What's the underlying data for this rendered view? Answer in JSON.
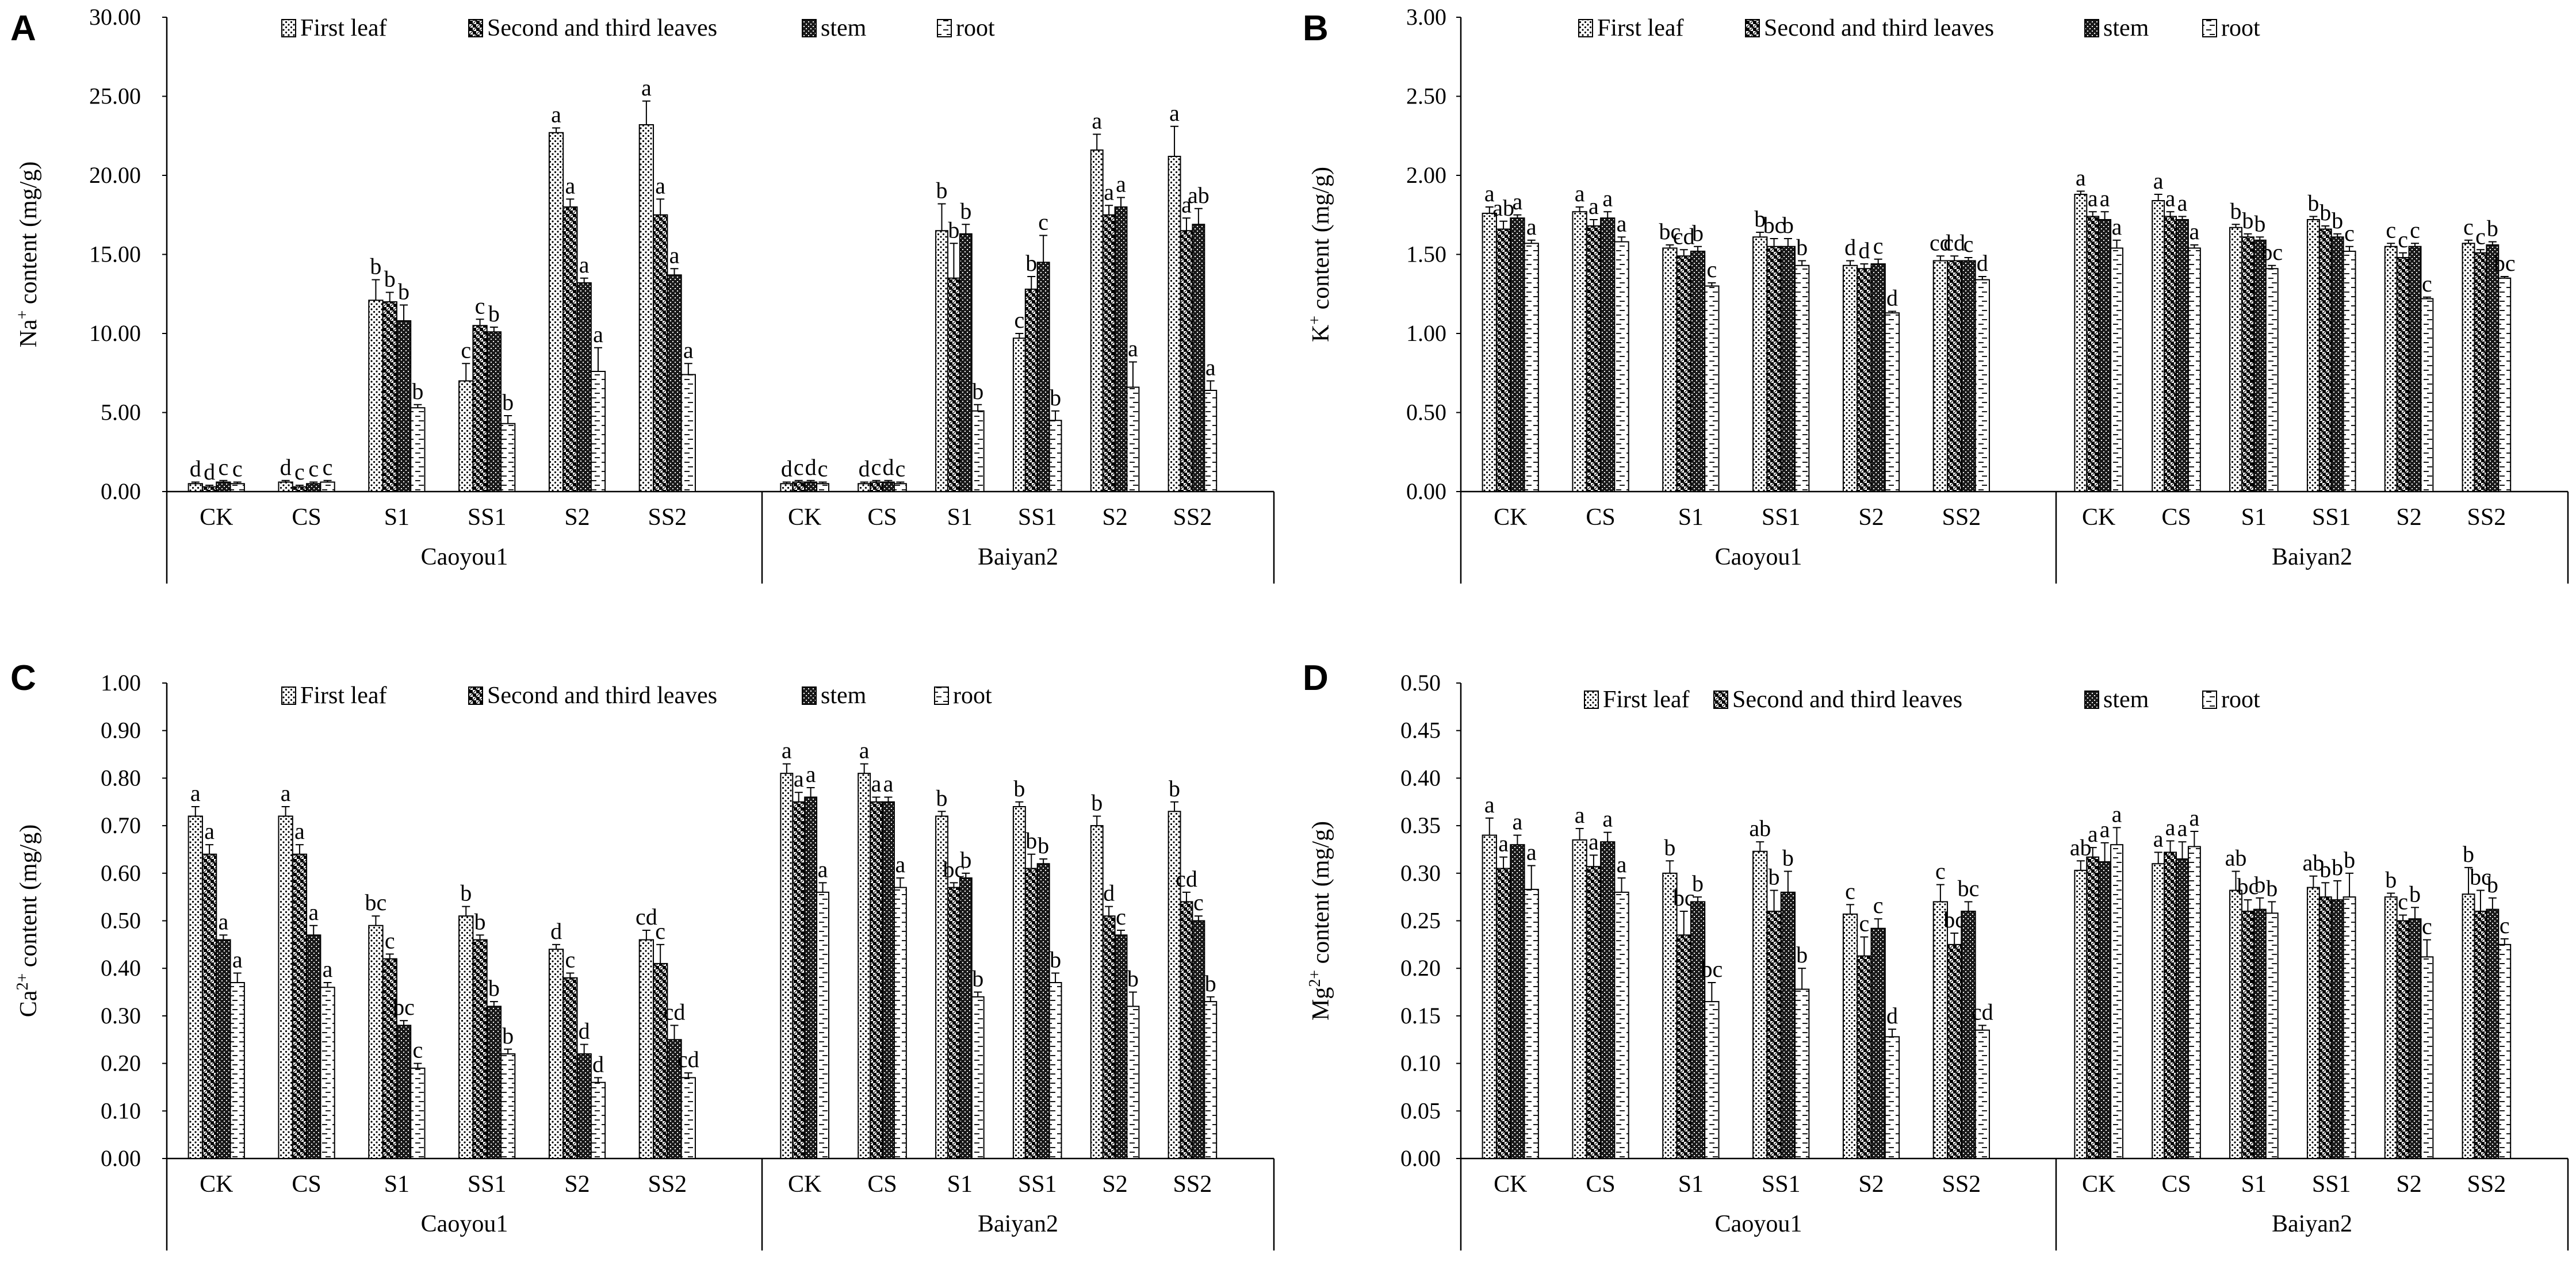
{
  "legend": [
    "First leaf",
    "Second and third leaves",
    "stem",
    "root"
  ],
  "chart_data": [
    {
      "panel": "A",
      "type": "bar",
      "ylabel_main": "Na",
      "ylabel_sup": "+",
      "ylabel_rest": " content (mg/g)",
      "ylim": [
        0,
        30
      ],
      "ystep": 5,
      "ydecimals": 2,
      "groups": [
        "Caoyou1",
        "Baiyan2"
      ],
      "categories": [
        "CK",
        "CS",
        "S1",
        "SS1",
        "S2",
        "SS2"
      ],
      "series_names": [
        "First leaf",
        "Second and third leaves",
        "stem",
        "root"
      ],
      "values": {
        "Caoyou1": [
          [
            0.5,
            0.3,
            0.6,
            0.5
          ],
          [
            0.6,
            0.3,
            0.5,
            0.6
          ],
          [
            12.1,
            12.0,
            10.8,
            5.3
          ],
          [
            7.0,
            10.5,
            10.1,
            4.3
          ],
          [
            22.7,
            18.0,
            13.2,
            7.6
          ],
          [
            23.2,
            17.5,
            13.7,
            7.4
          ]
        ],
        "Baiyan2": [
          [
            0.5,
            0.6,
            0.6,
            0.5
          ],
          [
            0.5,
            0.6,
            0.6,
            0.5
          ],
          [
            16.5,
            13.5,
            16.3,
            5.1
          ],
          [
            9.7,
            12.8,
            14.5,
            4.5
          ],
          [
            21.6,
            17.5,
            18.0,
            6.6
          ],
          [
            21.2,
            16.5,
            16.9,
            6.4
          ]
        ]
      },
      "errors": {
        "Caoyou1": [
          [
            0.1,
            0.1,
            0.1,
            0.1
          ],
          [
            0.1,
            0.1,
            0.1,
            0.1
          ],
          [
            1.3,
            0.6,
            1.0,
            0.2
          ],
          [
            1.1,
            0.4,
            0.3,
            0.5
          ],
          [
            0.3,
            0.5,
            0.3,
            1.5
          ],
          [
            1.5,
            1.0,
            0.4,
            0.7
          ]
        ],
        "Baiyan2": [
          [
            0.1,
            0.1,
            0.1,
            0.1
          ],
          [
            0.1,
            0.1,
            0.1,
            0.1
          ],
          [
            1.7,
            2.2,
            0.6,
            0.4
          ],
          [
            0.3,
            0.8,
            1.7,
            0.6
          ],
          [
            1.0,
            0.6,
            0.6,
            1.6
          ],
          [
            1.9,
            0.8,
            1.0,
            0.6
          ]
        ]
      },
      "labels": {
        "Caoyou1": [
          [
            "d",
            "d",
            "c",
            "c"
          ],
          [
            "d",
            "c",
            "c",
            "c"
          ],
          [
            "b",
            "b",
            "b",
            "b"
          ],
          [
            "c",
            "c",
            "b",
            "b"
          ],
          [
            "a",
            "a",
            "a",
            "a"
          ],
          [
            "a",
            "a",
            "a",
            "a"
          ]
        ],
        "Baiyan2": [
          [
            "d",
            "c",
            "d",
            "c"
          ],
          [
            "d",
            "c",
            "d",
            "c"
          ],
          [
            "b",
            "b",
            "b",
            "b"
          ],
          [
            "c",
            "b",
            "c",
            "b"
          ],
          [
            "a",
            "a",
            "a",
            "a"
          ],
          [
            "a",
            "a",
            "ab",
            "a"
          ]
        ]
      }
    },
    {
      "panel": "B",
      "type": "bar",
      "ylabel_main": "K",
      "ylabel_sup": "+",
      "ylabel_rest": " content (mg/g)",
      "ylim": [
        0,
        3
      ],
      "ystep": 0.5,
      "ydecimals": 2,
      "groups": [
        "Caoyou1",
        "Baiyan2"
      ],
      "categories": [
        "CK",
        "CS",
        "S1",
        "SS1",
        "S2",
        "SS2"
      ],
      "series_names": [
        "First leaf",
        "Second and third leaves",
        "stem",
        "root"
      ],
      "values": {
        "Caoyou1": [
          [
            1.76,
            1.66,
            1.73,
            1.57
          ],
          [
            1.77,
            1.68,
            1.73,
            1.58
          ],
          [
            1.54,
            1.49,
            1.52,
            1.3
          ],
          [
            1.61,
            1.55,
            1.55,
            1.43
          ],
          [
            1.43,
            1.41,
            1.44,
            1.13
          ],
          [
            1.46,
            1.46,
            1.46,
            1.34
          ]
        ],
        "Baiyan2": [
          [
            1.88,
            1.74,
            1.72,
            1.54
          ],
          [
            1.84,
            1.74,
            1.72,
            1.54
          ],
          [
            1.67,
            1.61,
            1.59,
            1.41
          ],
          [
            1.72,
            1.66,
            1.61,
            1.52
          ],
          [
            1.55,
            1.48,
            1.55,
            1.22
          ],
          [
            1.57,
            1.51,
            1.56,
            1.35
          ]
        ]
      },
      "errors": {
        "Caoyou1": [
          [
            0.04,
            0.05,
            0.02,
            0.02
          ],
          [
            0.03,
            0.04,
            0.04,
            0.03
          ],
          [
            0.02,
            0.04,
            0.03,
            0.02
          ],
          [
            0.03,
            0.05,
            0.05,
            0.03
          ],
          [
            0.03,
            0.03,
            0.03,
            0.01
          ],
          [
            0.03,
            0.03,
            0.02,
            0.02
          ]
        ],
        "Baiyan2": [
          [
            0.02,
            0.03,
            0.05,
            0.05
          ],
          [
            0.04,
            0.03,
            0.02,
            0.02
          ],
          [
            0.02,
            0.02,
            0.02,
            0.02
          ],
          [
            0.02,
            0.02,
            0.02,
            0.03
          ],
          [
            0.02,
            0.03,
            0.02,
            0.01
          ],
          [
            0.02,
            0.02,
            0.02,
            0.01
          ]
        ]
      },
      "labels": {
        "Caoyou1": [
          [
            "a",
            "ab",
            "a",
            "a"
          ],
          [
            "a",
            "a",
            "a",
            "a"
          ],
          [
            "bc",
            "cd",
            "b",
            "c"
          ],
          [
            "b",
            "bc",
            "b",
            "b"
          ],
          [
            "d",
            "d",
            "c",
            "d"
          ],
          [
            "cd",
            "cd",
            "c",
            "d"
          ]
        ],
        "Baiyan2": [
          [
            "a",
            "a",
            "a",
            "a"
          ],
          [
            "a",
            "a",
            "a",
            "a"
          ],
          [
            "b",
            "b",
            "b",
            "bc"
          ],
          [
            "b",
            "b",
            "b",
            "c"
          ],
          [
            "c",
            "c",
            "c",
            "c"
          ],
          [
            "c",
            "c",
            "b",
            "bc"
          ]
        ]
      }
    },
    {
      "panel": "C",
      "type": "bar",
      "ylabel_main": "Ca",
      "ylabel_sup": "2+",
      "ylabel_rest": " content (mg/g)",
      "ylim": [
        0,
        1
      ],
      "ystep": 0.1,
      "ydecimals": 2,
      "groups": [
        "Caoyou1",
        "Baiyan2"
      ],
      "categories": [
        "CK",
        "CS",
        "S1",
        "SS1",
        "S2",
        "SS2"
      ],
      "series_names": [
        "First leaf",
        "Second and third leaves",
        "stem",
        "root"
      ],
      "values": {
        "Caoyou1": [
          [
            0.72,
            0.64,
            0.46,
            0.37
          ],
          [
            0.72,
            0.64,
            0.47,
            0.36
          ],
          [
            0.49,
            0.42,
            0.28,
            0.19
          ],
          [
            0.51,
            0.46,
            0.32,
            0.22
          ],
          [
            0.44,
            0.38,
            0.22,
            0.16
          ],
          [
            0.46,
            0.41,
            0.25,
            0.17
          ]
        ],
        "Baiyan2": [
          [
            0.81,
            0.75,
            0.76,
            0.56
          ],
          [
            0.81,
            0.75,
            0.75,
            0.57
          ],
          [
            0.72,
            0.57,
            0.59,
            0.34
          ],
          [
            0.74,
            0.61,
            0.62,
            0.37
          ],
          [
            0.7,
            0.51,
            0.47,
            0.32
          ],
          [
            0.73,
            0.54,
            0.5,
            0.33
          ]
        ]
      },
      "errors": {
        "Caoyou1": [
          [
            0.02,
            0.02,
            0.01,
            0.02
          ],
          [
            0.02,
            0.02,
            0.02,
            0.01
          ],
          [
            0.02,
            0.01,
            0.01,
            0.01
          ],
          [
            0.02,
            0.01,
            0.01,
            0.01
          ],
          [
            0.01,
            0.01,
            0.02,
            0.01
          ],
          [
            0.02,
            0.04,
            0.03,
            0.01
          ]
        ],
        "Baiyan2": [
          [
            0.02,
            0.02,
            0.02,
            0.02
          ],
          [
            0.02,
            0.01,
            0.01,
            0.02
          ],
          [
            0.01,
            0.01,
            0.01,
            0.01
          ],
          [
            0.01,
            0.03,
            0.01,
            0.02
          ],
          [
            0.02,
            0.02,
            0.01,
            0.03
          ],
          [
            0.02,
            0.02,
            0.01,
            0.01
          ]
        ]
      },
      "labels": {
        "Caoyou1": [
          [
            "a",
            "a",
            "a",
            "a"
          ],
          [
            "a",
            "a",
            "a",
            "a"
          ],
          [
            "bc",
            "c",
            "bc",
            "c"
          ],
          [
            "b",
            "b",
            "b",
            "b"
          ],
          [
            "d",
            "c",
            "d",
            "d"
          ],
          [
            "cd",
            "c",
            "cd",
            "cd"
          ]
        ],
        "Baiyan2": [
          [
            "a",
            "a",
            "a",
            "a"
          ],
          [
            "a",
            "a",
            "a",
            "a"
          ],
          [
            "b",
            "bc",
            "b",
            "b"
          ],
          [
            "b",
            "b",
            "b",
            "b"
          ],
          [
            "b",
            "d",
            "c",
            "b"
          ],
          [
            "b",
            "cd",
            "c",
            "b"
          ]
        ]
      }
    },
    {
      "panel": "D",
      "type": "bar",
      "ylabel_main": "Mg",
      "ylabel_sup": "2+",
      "ylabel_rest": " content (mg/g)",
      "ylim": [
        0,
        0.5
      ],
      "ystep": 0.05,
      "ydecimals": 2,
      "groups": [
        "Caoyou1",
        "Baiyan2"
      ],
      "categories": [
        "CK",
        "CS",
        "S1",
        "SS1",
        "S2",
        "SS2"
      ],
      "series_names": [
        "First leaf",
        "Second and third leaves",
        "stem",
        "root"
      ],
      "values": {
        "Caoyou1": [
          [
            0.34,
            0.305,
            0.33,
            0.283
          ],
          [
            0.335,
            0.307,
            0.333,
            0.28
          ],
          [
            0.3,
            0.235,
            0.27,
            0.165
          ],
          [
            0.323,
            0.26,
            0.28,
            0.178
          ],
          [
            0.257,
            0.213,
            0.242,
            0.128
          ],
          [
            0.27,
            0.225,
            0.26,
            0.135
          ]
        ],
        "Baiyan2": [
          [
            0.303,
            0.317,
            0.312,
            0.33
          ],
          [
            0.31,
            0.322,
            0.315,
            0.328
          ],
          [
            0.282,
            0.26,
            0.262,
            0.258
          ],
          [
            0.285,
            0.275,
            0.272,
            0.275
          ],
          [
            0.275,
            0.25,
            0.252,
            0.212
          ],
          [
            0.278,
            0.26,
            0.262,
            0.225
          ]
        ]
      },
      "errors": {
        "Caoyou1": [
          [
            0.018,
            0.012,
            0.01,
            0.025
          ],
          [
            0.012,
            0.012,
            0.01,
            0.015
          ],
          [
            0.013,
            0.025,
            0.005,
            0.02
          ],
          [
            0.01,
            0.022,
            0.022,
            0.022
          ],
          [
            0.01,
            0.02,
            0.01,
            0.008
          ],
          [
            0.018,
            0.012,
            0.01,
            0.005
          ]
        ],
        "Baiyan2": [
          [
            0.01,
            0.01,
            0.02,
            0.018
          ],
          [
            0.012,
            0.012,
            0.018,
            0.016
          ],
          [
            0.02,
            0.012,
            0.012,
            0.012
          ],
          [
            0.012,
            0.015,
            0.02,
            0.025
          ],
          [
            0.004,
            0.006,
            0.012,
            0.018
          ],
          [
            0.028,
            0.022,
            0.012,
            0.006
          ]
        ]
      },
      "labels": {
        "Caoyou1": [
          [
            "a",
            "a",
            "a",
            "a"
          ],
          [
            "a",
            "a",
            "a",
            "a"
          ],
          [
            "b",
            "bc",
            "b",
            "bc"
          ],
          [
            "ab",
            "b",
            "b",
            "b"
          ],
          [
            "c",
            "c",
            "c",
            "d"
          ],
          [
            "c",
            "bc",
            "bc",
            "cd"
          ]
        ],
        "Baiyan2": [
          [
            "ab",
            "a",
            "a",
            "a"
          ],
          [
            "a",
            "a",
            "a",
            "a"
          ],
          [
            "ab",
            "bc",
            "b",
            "b"
          ],
          [
            "ab",
            "b",
            "b",
            "b"
          ],
          [
            "b",
            "c",
            "b",
            "c"
          ],
          [
            "b",
            "bc",
            "b",
            "c"
          ]
        ]
      }
    }
  ]
}
